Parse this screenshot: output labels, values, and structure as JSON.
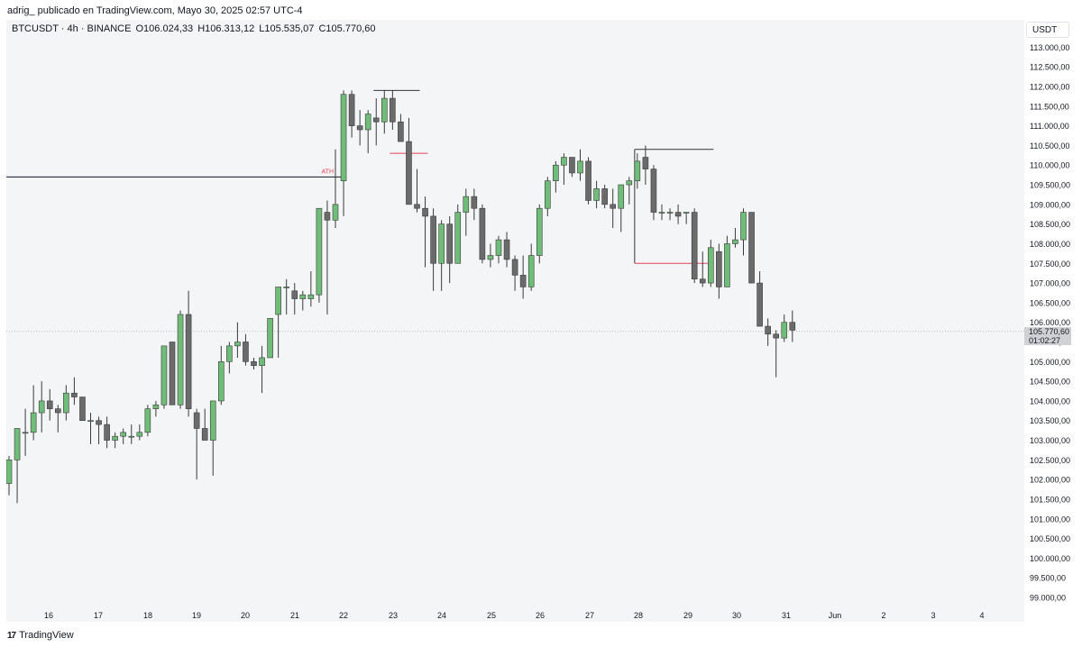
{
  "header": {
    "text": "adrig_ publicado en TradingView.com, Mayo 30, 2025 02:57 UTC-4"
  },
  "legend": {
    "symbol": "BTCUSDT · 4h · BINANCE",
    "open": "O106.024,33",
    "high": "H106.313,12",
    "low": "L105.535,07",
    "close": "C105.770,60"
  },
  "currency_button": "USDT",
  "last_price": {
    "price": "105.770,60",
    "countdown": "01:02:27"
  },
  "footer": {
    "brand": "TradingView",
    "logo_glyph": "17"
  },
  "colors": {
    "up": "#6fbd78",
    "down": "#6b6b6b",
    "ath_line": "#131722",
    "ath_label": "#e0455a",
    "marker_red": "#e0455a"
  },
  "chart_data": {
    "type": "candlestick",
    "symbol": "BTCUSDT",
    "interval": "4h",
    "exchange": "BINANCE",
    "ylim": [
      98800,
      113300
    ],
    "y_ticks": [
      99000,
      99500,
      100000,
      100500,
      101000,
      101500,
      102000,
      102500,
      103000,
      103500,
      104000,
      104500,
      105000,
      105500,
      106000,
      106500,
      107000,
      107500,
      108000,
      108500,
      109000,
      109500,
      110000,
      110500,
      111000,
      111500,
      112000,
      112500,
      113000
    ],
    "y_tick_labels": [
      "99.000,00",
      "99.500,00",
      "100.000,00",
      "100.500,00",
      "101.000,00",
      "101.500,00",
      "102.000,00",
      "102.500,00",
      "103.000,00",
      "103.500,00",
      "104.000,00",
      "104.500,00",
      "105.000,00",
      "105.500,00",
      "106.000,00",
      "106.500,00",
      "107.000,00",
      "107.500,00",
      "108.000,00",
      "108.500,00",
      "109.000,00",
      "109.500,00",
      "110.000,00",
      "110.500,00",
      "111.000,00",
      "111.500,00",
      "112.000,00",
      "112.500,00",
      "113.000,00"
    ],
    "x_labels": [
      "16",
      "17",
      "18",
      "19",
      "20",
      "21",
      "22",
      "23",
      "24",
      "25",
      "26",
      "27",
      "28",
      "29",
      "30",
      "31",
      "Jun",
      "2",
      "3",
      "4"
    ],
    "candles": [
      {
        "o": 101900,
        "h": 102600,
        "l": 101600,
        "c": 102500
      },
      {
        "o": 102500,
        "h": 103300,
        "l": 101400,
        "c": 103300
      },
      {
        "o": 103200,
        "h": 103800,
        "l": 102600,
        "c": 103200
      },
      {
        "o": 103200,
        "h": 104400,
        "l": 103000,
        "c": 103700
      },
      {
        "o": 103700,
        "h": 104500,
        "l": 103200,
        "c": 104000
      },
      {
        "o": 104000,
        "h": 104300,
        "l": 103500,
        "c": 103800
      },
      {
        "o": 103800,
        "h": 103900,
        "l": 103200,
        "c": 103700
      },
      {
        "o": 103700,
        "h": 104400,
        "l": 103500,
        "c": 104200
      },
      {
        "o": 104200,
        "h": 104600,
        "l": 103900,
        "c": 104100
      },
      {
        "o": 104100,
        "h": 104100,
        "l": 103500,
        "c": 103500
      },
      {
        "o": 103500,
        "h": 103700,
        "l": 102900,
        "c": 103500
      },
      {
        "o": 103500,
        "h": 103600,
        "l": 102900,
        "c": 103400
      },
      {
        "o": 103400,
        "h": 103600,
        "l": 102800,
        "c": 103000
      },
      {
        "o": 103000,
        "h": 103200,
        "l": 102800,
        "c": 103100
      },
      {
        "o": 103100,
        "h": 103300,
        "l": 102900,
        "c": 103200
      },
      {
        "o": 103100,
        "h": 103400,
        "l": 102900,
        "c": 103100
      },
      {
        "o": 103100,
        "h": 103400,
        "l": 103000,
        "c": 103200
      },
      {
        "o": 103200,
        "h": 103900,
        "l": 103100,
        "c": 103800
      },
      {
        "o": 103800,
        "h": 104000,
        "l": 103600,
        "c": 103900
      },
      {
        "o": 103900,
        "h": 105400,
        "l": 103800,
        "c": 105400
      },
      {
        "o": 105500,
        "h": 105500,
        "l": 103900,
        "c": 103900
      },
      {
        "o": 103900,
        "h": 106300,
        "l": 103800,
        "c": 106200
      },
      {
        "o": 106200,
        "h": 106800,
        "l": 103600,
        "c": 103800
      },
      {
        "o": 103700,
        "h": 103800,
        "l": 102000,
        "c": 103300
      },
      {
        "o": 103300,
        "h": 103800,
        "l": 103000,
        "c": 103000
      },
      {
        "o": 103000,
        "h": 104000,
        "l": 102100,
        "c": 104000
      },
      {
        "o": 104000,
        "h": 105400,
        "l": 103900,
        "c": 105000
      },
      {
        "o": 105000,
        "h": 105500,
        "l": 104700,
        "c": 105400
      },
      {
        "o": 105400,
        "h": 106000,
        "l": 105100,
        "c": 105500
      },
      {
        "o": 105500,
        "h": 105700,
        "l": 104900,
        "c": 105000
      },
      {
        "o": 105000,
        "h": 105100,
        "l": 104800,
        "c": 104900
      },
      {
        "o": 104900,
        "h": 105400,
        "l": 104200,
        "c": 105100
      },
      {
        "o": 105100,
        "h": 106100,
        "l": 105100,
        "c": 106100
      },
      {
        "o": 106200,
        "h": 106900,
        "l": 105100,
        "c": 106900
      },
      {
        "o": 106900,
        "h": 107100,
        "l": 106200,
        "c": 106900
      },
      {
        "o": 106800,
        "h": 107000,
        "l": 106200,
        "c": 106600
      },
      {
        "o": 106600,
        "h": 106800,
        "l": 106300,
        "c": 106700
      },
      {
        "o": 106600,
        "h": 107300,
        "l": 106400,
        "c": 106700
      },
      {
        "o": 106700,
        "h": 108900,
        "l": 106500,
        "c": 108900
      },
      {
        "o": 108800,
        "h": 109100,
        "l": 106200,
        "c": 108600
      },
      {
        "o": 108600,
        "h": 110400,
        "l": 108400,
        "c": 109000
      },
      {
        "o": 109600,
        "h": 111900,
        "l": 108700,
        "c": 111800
      },
      {
        "o": 111800,
        "h": 111900,
        "l": 110700,
        "c": 111000
      },
      {
        "o": 111000,
        "h": 111400,
        "l": 110500,
        "c": 110900
      },
      {
        "o": 110900,
        "h": 111400,
        "l": 110300,
        "c": 111300
      },
      {
        "o": 111200,
        "h": 111700,
        "l": 110500,
        "c": 111100
      },
      {
        "o": 111100,
        "h": 111900,
        "l": 110800,
        "c": 111700
      },
      {
        "o": 111700,
        "h": 111900,
        "l": 110900,
        "c": 111100
      },
      {
        "o": 111100,
        "h": 111300,
        "l": 110600,
        "c": 110600
      },
      {
        "o": 110600,
        "h": 111200,
        "l": 109000,
        "c": 109000
      },
      {
        "o": 109000,
        "h": 109900,
        "l": 108800,
        "c": 108900
      },
      {
        "o": 108900,
        "h": 109200,
        "l": 107400,
        "c": 108700
      },
      {
        "o": 108700,
        "h": 108900,
        "l": 106800,
        "c": 107500
      },
      {
        "o": 107500,
        "h": 108600,
        "l": 106800,
        "c": 108500
      },
      {
        "o": 108500,
        "h": 108700,
        "l": 107000,
        "c": 107500
      },
      {
        "o": 107500,
        "h": 109000,
        "l": 107500,
        "c": 108800
      },
      {
        "o": 108800,
        "h": 109400,
        "l": 108200,
        "c": 109200
      },
      {
        "o": 109200,
        "h": 109400,
        "l": 108600,
        "c": 108900
      },
      {
        "o": 108900,
        "h": 109000,
        "l": 107500,
        "c": 107600
      },
      {
        "o": 107600,
        "h": 108000,
        "l": 107400,
        "c": 107700
      },
      {
        "o": 107700,
        "h": 108200,
        "l": 107500,
        "c": 108100
      },
      {
        "o": 108100,
        "h": 108300,
        "l": 107400,
        "c": 107600
      },
      {
        "o": 107600,
        "h": 107700,
        "l": 106800,
        "c": 107200
      },
      {
        "o": 107200,
        "h": 107700,
        "l": 106600,
        "c": 106900
      },
      {
        "o": 106900,
        "h": 108000,
        "l": 106800,
        "c": 107700
      },
      {
        "o": 107700,
        "h": 109000,
        "l": 107500,
        "c": 108900
      },
      {
        "o": 108900,
        "h": 109700,
        "l": 108700,
        "c": 109600
      },
      {
        "o": 109600,
        "h": 110100,
        "l": 109300,
        "c": 110000
      },
      {
        "o": 110000,
        "h": 110300,
        "l": 109500,
        "c": 110200
      },
      {
        "o": 110200,
        "h": 110200,
        "l": 109700,
        "c": 109800
      },
      {
        "o": 109800,
        "h": 110400,
        "l": 109600,
        "c": 110100
      },
      {
        "o": 110100,
        "h": 110200,
        "l": 109000,
        "c": 109100
      },
      {
        "o": 109100,
        "h": 109600,
        "l": 108900,
        "c": 109400
      },
      {
        "o": 109400,
        "h": 109500,
        "l": 108900,
        "c": 109000
      },
      {
        "o": 109000,
        "h": 109400,
        "l": 108400,
        "c": 108900
      },
      {
        "o": 108900,
        "h": 109500,
        "l": 108300,
        "c": 109500
      },
      {
        "o": 109500,
        "h": 109700,
        "l": 109000,
        "c": 109600
      },
      {
        "o": 109600,
        "h": 110300,
        "l": 109400,
        "c": 110100
      },
      {
        "o": 110200,
        "h": 110500,
        "l": 109500,
        "c": 109900
      },
      {
        "o": 109900,
        "h": 110000,
        "l": 108600,
        "c": 108800
      },
      {
        "o": 108800,
        "h": 109000,
        "l": 108600,
        "c": 108800
      },
      {
        "o": 108800,
        "h": 108900,
        "l": 108600,
        "c": 108800
      },
      {
        "o": 108800,
        "h": 109000,
        "l": 108500,
        "c": 108700
      },
      {
        "o": 108800,
        "h": 108800,
        "l": 108500,
        "c": 108800
      },
      {
        "o": 108800,
        "h": 108900,
        "l": 107000,
        "c": 107100
      },
      {
        "o": 107100,
        "h": 107800,
        "l": 106900,
        "c": 107000
      },
      {
        "o": 107000,
        "h": 108100,
        "l": 106900,
        "c": 107900
      },
      {
        "o": 107800,
        "h": 108000,
        "l": 106600,
        "c": 106900
      },
      {
        "o": 106900,
        "h": 108200,
        "l": 106900,
        "c": 108000
      },
      {
        "o": 108000,
        "h": 108400,
        "l": 107900,
        "c": 108100
      },
      {
        "o": 108100,
        "h": 108900,
        "l": 107700,
        "c": 108800
      },
      {
        "o": 108800,
        "h": 108800,
        "l": 107000,
        "c": 107000
      },
      {
        "o": 107000,
        "h": 107300,
        "l": 105900,
        "c": 105900
      },
      {
        "o": 105900,
        "h": 106100,
        "l": 105400,
        "c": 105700
      },
      {
        "o": 105700,
        "h": 105800,
        "l": 104600,
        "c": 105600
      },
      {
        "o": 105600,
        "h": 106200,
        "l": 105500,
        "c": 106000
      },
      {
        "o": 106000,
        "h": 106300,
        "l": 105500,
        "c": 105800
      }
    ],
    "annotations": [
      {
        "type": "hline",
        "label": "ATH",
        "price": 109700,
        "from_candle": 0,
        "to_candle": 40
      },
      {
        "type": "segment",
        "price": 111900,
        "from_candle": 45,
        "to_candle": 50,
        "color": "dark"
      },
      {
        "type": "segment",
        "price": 110300,
        "from_candle": 47,
        "to_candle": 51,
        "color": "red"
      },
      {
        "type": "segment",
        "price": 110400,
        "from_candle": 77,
        "to_candle": 86,
        "color": "dark"
      },
      {
        "type": "vline",
        "from_price": 110400,
        "to_price": 107500,
        "candle": 77,
        "color": "dark"
      },
      {
        "type": "segment",
        "price": 107500,
        "from_candle": 77,
        "to_candle": 86,
        "color": "red"
      }
    ],
    "last_price": 105770.6,
    "grid": false
  }
}
